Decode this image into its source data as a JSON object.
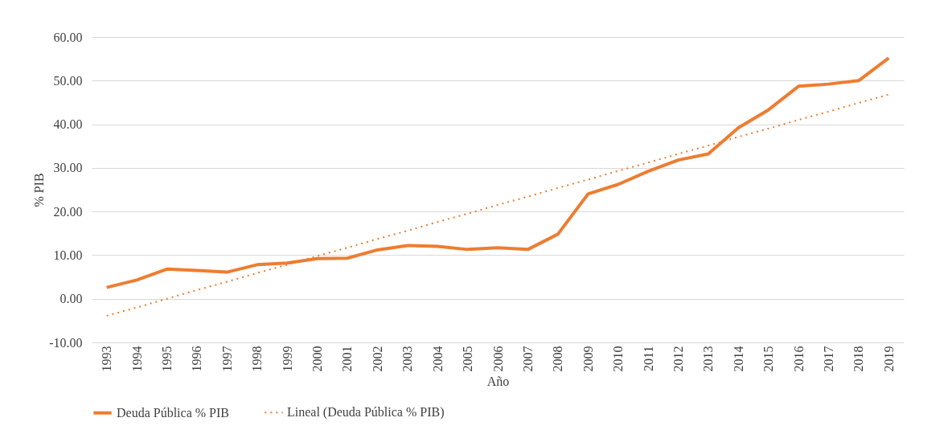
{
  "chart_data": {
    "type": "line",
    "xlabel": "Año",
    "ylabel": "% PIB",
    "categories": [
      "1993",
      "1994",
      "1995",
      "1996",
      "1997",
      "1998",
      "1999",
      "2000",
      "2001",
      "2002",
      "2003",
      "2004",
      "2005",
      "2006",
      "2007",
      "2008",
      "2009",
      "2010",
      "2011",
      "2012",
      "2013",
      "2014",
      "2015",
      "2016",
      "2017",
      "2018",
      "2019"
    ],
    "series": [
      {
        "name": "Deuda Pública % PIB",
        "color": "#ed7d31",
        "line_style": "solid",
        "values": [
          2.6,
          4.3,
          6.8,
          6.5,
          6.1,
          7.8,
          8.2,
          9.2,
          9.3,
          11.2,
          12.2,
          12.0,
          11.3,
          11.7,
          11.3,
          14.8,
          24.0,
          26.2,
          29.2,
          31.8,
          33.2,
          39.2,
          43.3,
          48.7,
          49.2,
          50.0,
          55.2
        ]
      },
      {
        "name": "Lineal (Deuda Pública % PIB)",
        "color": "#ed7d31",
        "line_style": "dotted",
        "values": [
          -3.9,
          -2.0,
          0.0,
          2.0,
          3.9,
          5.9,
          7.8,
          9.8,
          11.7,
          13.7,
          15.6,
          17.6,
          19.5,
          21.5,
          23.4,
          25.4,
          27.3,
          29.3,
          31.2,
          33.2,
          35.1,
          37.1,
          39.0,
          41.0,
          42.9,
          44.9,
          46.8
        ]
      }
    ],
    "ylim": [
      -10,
      60
    ],
    "yticks": [
      {
        "value": -10,
        "label": "-10.00"
      },
      {
        "value": 0,
        "label": "0.00"
      },
      {
        "value": 10,
        "label": "10.00"
      },
      {
        "value": 20,
        "label": "20.00"
      },
      {
        "value": 30,
        "label": "30.00"
      },
      {
        "value": 40,
        "label": "40.00"
      },
      {
        "value": 50,
        "label": "50.00"
      },
      {
        "value": 60,
        "label": "60.00"
      }
    ],
    "grid": "y",
    "legend": "bottom"
  }
}
